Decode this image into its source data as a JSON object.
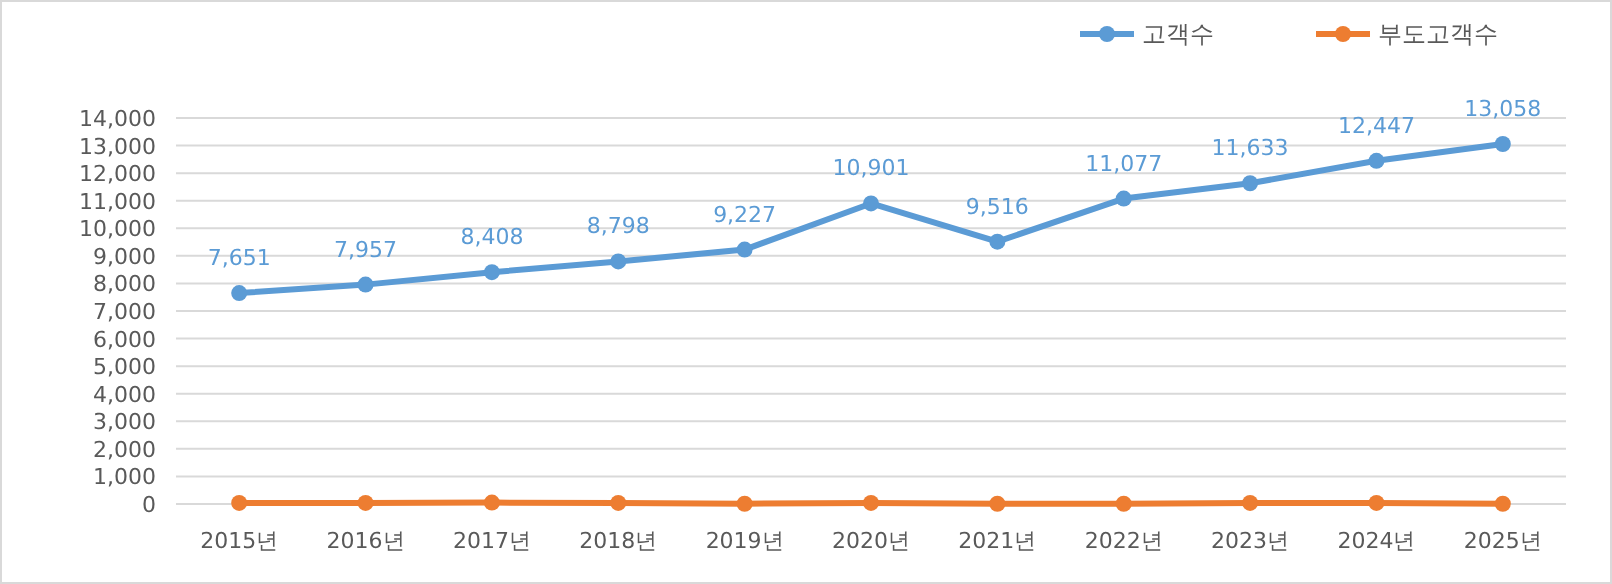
{
  "chart_data": {
    "type": "line",
    "categories": [
      "2015년",
      "2016년",
      "2017년",
      "2018년",
      "2019년",
      "2020년",
      "2021년",
      "2022년",
      "2023년",
      "2024년",
      "2025년"
    ],
    "series": [
      {
        "name": "고객수",
        "color": "#5b9bd5",
        "values": [
          7651,
          7957,
          8408,
          8798,
          9227,
          10901,
          9516,
          11077,
          11633,
          12447,
          13058
        ],
        "value_labels": [
          "7,651",
          "7,957",
          "8,408",
          "8,798",
          "9,227",
          "10,901",
          "9,516",
          "11,077",
          "11,633",
          "12,447",
          "13,058"
        ]
      },
      {
        "name": "부도고객수",
        "color": "#ed7d31",
        "values": [
          40,
          40,
          50,
          40,
          10,
          40,
          10,
          10,
          40,
          40,
          10
        ]
      }
    ],
    "ylim": [
      0,
      14000
    ],
    "yticks": [
      {
        "value": 0,
        "label": "0"
      },
      {
        "value": 1000,
        "label": "1,000"
      },
      {
        "value": 2000,
        "label": "2,000"
      },
      {
        "value": 3000,
        "label": "3,000"
      },
      {
        "value": 4000,
        "label": "4,000"
      },
      {
        "value": 5000,
        "label": "5,000"
      },
      {
        "value": 6000,
        "label": "6,000"
      },
      {
        "value": 7000,
        "label": "7,000"
      },
      {
        "value": 8000,
        "label": "8,000"
      },
      {
        "value": 9000,
        "label": "9,000"
      },
      {
        "value": 10000,
        "label": "10,000"
      },
      {
        "value": 11000,
        "label": "11,000"
      },
      {
        "value": 12000,
        "label": "12,000"
      },
      {
        "value": 13000,
        "label": "13,000"
      },
      {
        "value": 14000,
        "label": "14,000"
      }
    ],
    "grid": "y",
    "legend": "top right",
    "marker": "circle",
    "line_style": "solid"
  }
}
